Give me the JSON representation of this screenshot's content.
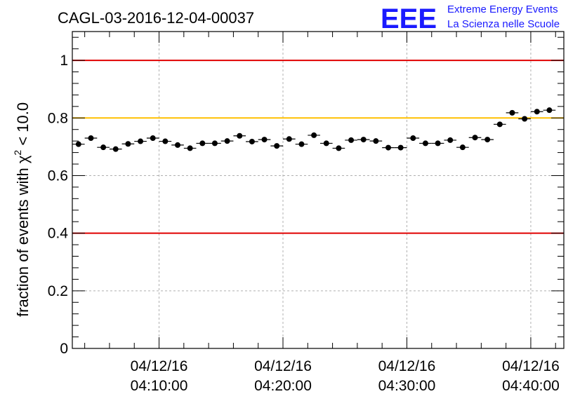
{
  "header": {
    "title": "CAGL-03-2016-12-04-00037",
    "logo_text": "EEE",
    "logo_line1": "Extreme Energy Events",
    "logo_line2": "La Scienza nelle Scuole"
  },
  "chart_data": {
    "type": "scatter",
    "title": "CAGL-03-2016-12-04-00037",
    "ylabel_main": "fraction of events with χ",
    "ylabel_sup": "2",
    "ylabel_tail": " < 10.0",
    "xlabel": "",
    "ylim": [
      0,
      1.1
    ],
    "xlim_min": [
      4,
      3,
      0
    ],
    "xlim_max": [
      4,
      42,
      40
    ],
    "y_ticks": [
      "0",
      "0.2",
      "0.4",
      "0.6",
      "0.8",
      "1"
    ],
    "x_ticks": [
      {
        "date": "04/12/16",
        "time": "04:10:00"
      },
      {
        "date": "04/12/16",
        "time": "04:20:00"
      },
      {
        "date": "04/12/16",
        "time": "04:30:00"
      },
      {
        "date": "04/12/16",
        "time": "04:40:00"
      }
    ],
    "grid": true,
    "reference_lines": [
      {
        "y": 1.0,
        "color": "#e00000"
      },
      {
        "y": 0.8,
        "color": "#ffc000"
      },
      {
        "y": 0.4,
        "color": "#e00000"
      }
    ],
    "bin_width_minutes": 1,
    "points": [
      {
        "x": "04:03:30",
        "y": 0.709
      },
      {
        "x": "04:04:30",
        "y": 0.73
      },
      {
        "x": "04:05:30",
        "y": 0.698
      },
      {
        "x": "04:06:30",
        "y": 0.692
      },
      {
        "x": "04:07:30",
        "y": 0.71
      },
      {
        "x": "04:08:30",
        "y": 0.719
      },
      {
        "x": "04:09:30",
        "y": 0.73
      },
      {
        "x": "04:10:30",
        "y": 0.719
      },
      {
        "x": "04:11:30",
        "y": 0.706
      },
      {
        "x": "04:12:30",
        "y": 0.695
      },
      {
        "x": "04:13:30",
        "y": 0.712
      },
      {
        "x": "04:14:30",
        "y": 0.712
      },
      {
        "x": "04:15:30",
        "y": 0.72
      },
      {
        "x": "04:16:30",
        "y": 0.738
      },
      {
        "x": "04:17:30",
        "y": 0.718
      },
      {
        "x": "04:18:30",
        "y": 0.725
      },
      {
        "x": "04:19:30",
        "y": 0.703
      },
      {
        "x": "04:20:30",
        "y": 0.727
      },
      {
        "x": "04:21:30",
        "y": 0.709
      },
      {
        "x": "04:22:30",
        "y": 0.74
      },
      {
        "x": "04:23:30",
        "y": 0.712
      },
      {
        "x": "04:24:30",
        "y": 0.695
      },
      {
        "x": "04:25:30",
        "y": 0.723
      },
      {
        "x": "04:26:30",
        "y": 0.725
      },
      {
        "x": "04:27:30",
        "y": 0.72
      },
      {
        "x": "04:28:30",
        "y": 0.697
      },
      {
        "x": "04:29:30",
        "y": 0.697
      },
      {
        "x": "04:30:30",
        "y": 0.73
      },
      {
        "x": "04:31:30",
        "y": 0.712
      },
      {
        "x": "04:32:30",
        "y": 0.712
      },
      {
        "x": "04:33:30",
        "y": 0.723
      },
      {
        "x": "04:34:30",
        "y": 0.698
      },
      {
        "x": "04:35:30",
        "y": 0.732
      },
      {
        "x": "04:36:30",
        "y": 0.725
      },
      {
        "x": "04:37:30",
        "y": 0.778
      },
      {
        "x": "04:38:30",
        "y": 0.818
      },
      {
        "x": "04:39:30",
        "y": 0.797
      },
      {
        "x": "04:40:30",
        "y": 0.822
      },
      {
        "x": "04:41:30",
        "y": 0.827
      }
    ]
  }
}
